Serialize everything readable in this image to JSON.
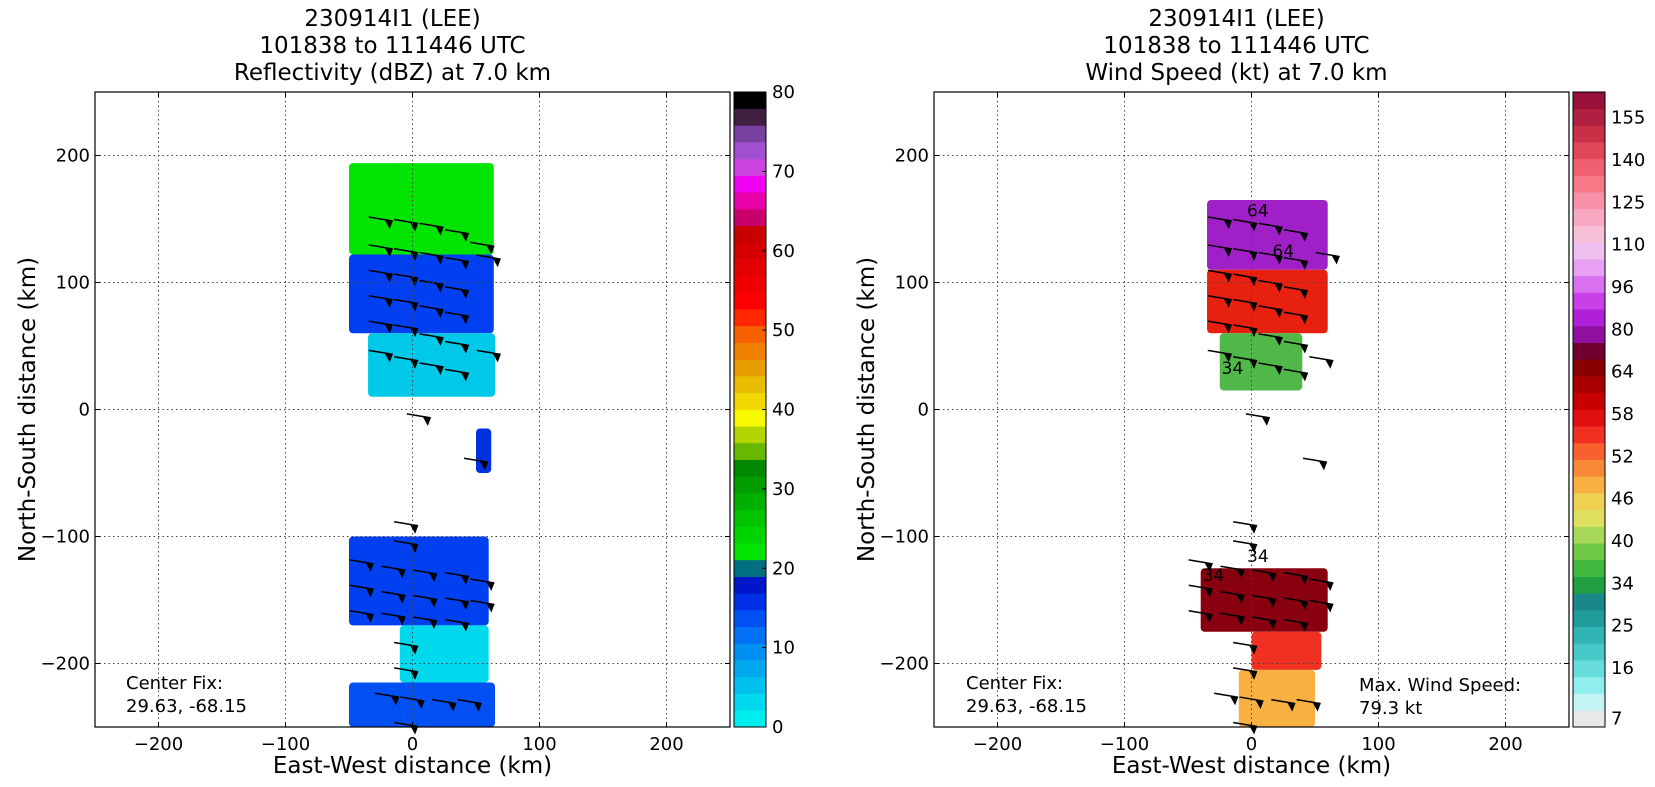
{
  "chart_data": [
    {
      "type": "heatmap",
      "title_lines": [
        "230914I1 (LEE)",
        "101838 to 111446 UTC",
        "Reflectivity (dBZ) at 7.0 km"
      ],
      "xlabel": "East-West distance (km)",
      "ylabel": "North-South distance (km)",
      "xlim": [
        -250,
        250
      ],
      "ylim": [
        -250,
        250
      ],
      "xticks": [
        -200,
        -100,
        0,
        100,
        200
      ],
      "yticks": [
        -200,
        -100,
        0,
        100,
        200
      ],
      "grid": true,
      "annotation": [
        "Center Fix:",
        "29.63, -68.15"
      ],
      "colorbar": {
        "label": "Reflectivity (dBZ)",
        "range": [
          0,
          80
        ],
        "ticks": [
          0,
          10,
          20,
          30,
          40,
          50,
          60,
          70,
          80
        ],
        "colors": [
          "#00eeee",
          "#00d8ee",
          "#00c0ee",
          "#00a8f0",
          "#0090f2",
          "#0070f4",
          "#0050f4",
          "#0030e6",
          "#0016c8",
          "#007080",
          "#00e400",
          "#00d400",
          "#00c400",
          "#00b000",
          "#009c00",
          "#008800",
          "#68b800",
          "#b4d400",
          "#f8f800",
          "#f0d800",
          "#e8bc00",
          "#e89c00",
          "#f08000",
          "#f86000",
          "#ff2800",
          "#ff0000",
          "#f00000",
          "#e20000",
          "#d40000",
          "#c80000",
          "#c8006c",
          "#e800a8",
          "#f000f0",
          "#cc44e0",
          "#a050d0",
          "#7840a0",
          "#402040",
          "#000000"
        ]
      },
      "echo_regions": [
        {
          "x": -50,
          "y": 122,
          "w": 114,
          "h": 72,
          "color": "#00e400"
        },
        {
          "x": -50,
          "y": 60,
          "w": 114,
          "h": 62,
          "color": "#0040f0"
        },
        {
          "x": -35,
          "y": 10,
          "w": 100,
          "h": 50,
          "color": "#00c8e8"
        },
        {
          "x": 50,
          "y": -50,
          "w": 12,
          "h": 35,
          "color": "#0030e0"
        },
        {
          "x": -50,
          "y": -170,
          "w": 110,
          "h": 70,
          "color": "#0040f0"
        },
        {
          "x": -10,
          "y": -215,
          "w": 70,
          "h": 45,
          "color": "#00d8ee"
        },
        {
          "x": -50,
          "y": -250,
          "w": 115,
          "h": 35,
          "color": "#0050f4"
        }
      ],
      "wind_barbs": [
        [
          -25,
          150
        ],
        [
          -5,
          148
        ],
        [
          15,
          145
        ],
        [
          35,
          140
        ],
        [
          55,
          130
        ],
        [
          -25,
          128
        ],
        [
          -5,
          125
        ],
        [
          15,
          122
        ],
        [
          35,
          118
        ],
        [
          60,
          120
        ],
        [
          -25,
          108
        ],
        [
          -5,
          105
        ],
        [
          15,
          100
        ],
        [
          35,
          95
        ],
        [
          -25,
          88
        ],
        [
          -5,
          85
        ],
        [
          15,
          80
        ],
        [
          35,
          75
        ],
        [
          -25,
          68
        ],
        [
          -5,
          65
        ],
        [
          15,
          58
        ],
        [
          35,
          52
        ],
        [
          60,
          45
        ],
        [
          -25,
          45
        ],
        [
          -5,
          40
        ],
        [
          15,
          35
        ],
        [
          35,
          30
        ],
        [
          5,
          -5
        ],
        [
          50,
          -40
        ],
        [
          -5,
          -90
        ],
        [
          -5,
          -105
        ],
        [
          -40,
          -120
        ],
        [
          -15,
          -125
        ],
        [
          10,
          -128
        ],
        [
          35,
          -130
        ],
        [
          55,
          -135
        ],
        [
          -40,
          -140
        ],
        [
          -15,
          -145
        ],
        [
          10,
          -148
        ],
        [
          35,
          -150
        ],
        [
          55,
          -152
        ],
        [
          -40,
          -160
        ],
        [
          -15,
          -162
        ],
        [
          10,
          -165
        ],
        [
          35,
          -167
        ],
        [
          -5,
          -185
        ],
        [
          -5,
          -205
        ],
        [
          -20,
          -225
        ],
        [
          0,
          -228
        ],
        [
          25,
          -230
        ],
        [
          45,
          -230
        ],
        [
          -5,
          -248
        ]
      ]
    },
    {
      "type": "heatmap",
      "title_lines": [
        "230914I1 (LEE)",
        "101838 to 111446 UTC",
        "Wind Speed (kt) at 7.0 km"
      ],
      "xlabel": "East-West distance (km)",
      "ylabel": "North-South distance (km)",
      "xlim": [
        -250,
        250
      ],
      "ylim": [
        -250,
        250
      ],
      "xticks": [
        -200,
        -100,
        0,
        100,
        200
      ],
      "yticks": [
        -200,
        -100,
        0,
        100,
        200
      ],
      "grid": true,
      "annotation": [
        "Center Fix:",
        "29.63, -68.15"
      ],
      "max_wind_label": [
        "Max. Wind Speed:",
        "79.3 kt"
      ],
      "max_wind_kt": 79.3,
      "contour_labels": [
        {
          "text": "64",
          "x": 5,
          "y": 152
        },
        {
          "text": "64",
          "x": 25,
          "y": 120
        },
        {
          "text": "34",
          "x": -15,
          "y": 28
        },
        {
          "text": "34",
          "x": 5,
          "y": -120
        },
        {
          "text": "34",
          "x": -30,
          "y": -135
        }
      ],
      "colorbar": {
        "label": "Wind Speed (kt)",
        "tick_labels": [
          "7",
          "16",
          "25",
          "34",
          "40",
          "46",
          "52",
          "58",
          "64",
          "80",
          "96",
          "110",
          "125",
          "140",
          "155"
        ],
        "colors": [
          "#e8e8e8",
          "#c4f4f4",
          "#90eeee",
          "#68dcdc",
          "#48c8c8",
          "#30b4b4",
          "#209c9c",
          "#188888",
          "#20a040",
          "#40b840",
          "#70c848",
          "#a8d858",
          "#e0e060",
          "#f0d050",
          "#f8b040",
          "#f88838",
          "#f86030",
          "#f03020",
          "#e01010",
          "#c80000",
          "#a80000",
          "#880000",
          "#700030",
          "#9010a0",
          "#b020d8",
          "#c840e8",
          "#d870f0",
          "#e8a0f4",
          "#f0c0f0",
          "#f8c0d8",
          "#f8a8c0",
          "#f890a8",
          "#f87888",
          "#f06070",
          "#e04858",
          "#c83048",
          "#b02040",
          "#981038"
        ]
      },
      "wind_regions": [
        {
          "x": -35,
          "y": 110,
          "w": 95,
          "h": 55,
          "color": "#a020c8"
        },
        {
          "x": -35,
          "y": 60,
          "w": 95,
          "h": 50,
          "color": "#e82010"
        },
        {
          "x": -25,
          "y": 15,
          "w": 65,
          "h": 45,
          "color": "#50b848"
        },
        {
          "x": -40,
          "y": -175,
          "w": 100,
          "h": 50,
          "color": "#880010"
        },
        {
          "x": 0,
          "y": -205,
          "w": 55,
          "h": 30,
          "color": "#f03020"
        },
        {
          "x": -10,
          "y": -250,
          "w": 60,
          "h": 45,
          "color": "#f8b040"
        }
      ],
      "wind_barbs": [
        [
          -25,
          150
        ],
        [
          -5,
          148
        ],
        [
          15,
          145
        ],
        [
          35,
          140
        ],
        [
          60,
          122
        ],
        [
          -25,
          128
        ],
        [
          -5,
          125
        ],
        [
          15,
          122
        ],
        [
          35,
          118
        ],
        [
          -25,
          108
        ],
        [
          -5,
          105
        ],
        [
          15,
          100
        ],
        [
          35,
          95
        ],
        [
          -25,
          88
        ],
        [
          -5,
          85
        ],
        [
          15,
          80
        ],
        [
          35,
          75
        ],
        [
          -25,
          68
        ],
        [
          -5,
          65
        ],
        [
          15,
          58
        ],
        [
          35,
          52
        ],
        [
          55,
          40
        ],
        [
          -25,
          45
        ],
        [
          -5,
          40
        ],
        [
          15,
          35
        ],
        [
          35,
          30
        ],
        [
          5,
          -5
        ],
        [
          50,
          -40
        ],
        [
          -5,
          -90
        ],
        [
          -5,
          -105
        ],
        [
          -40,
          -120
        ],
        [
          -15,
          -125
        ],
        [
          10,
          -128
        ],
        [
          35,
          -130
        ],
        [
          55,
          -135
        ],
        [
          -40,
          -140
        ],
        [
          -15,
          -145
        ],
        [
          10,
          -148
        ],
        [
          35,
          -150
        ],
        [
          55,
          -152
        ],
        [
          -40,
          -160
        ],
        [
          -15,
          -162
        ],
        [
          10,
          -165
        ],
        [
          35,
          -167
        ],
        [
          -5,
          -185
        ],
        [
          -5,
          -205
        ],
        [
          -20,
          -225
        ],
        [
          0,
          -228
        ],
        [
          25,
          -230
        ],
        [
          45,
          -230
        ],
        [
          -5,
          -248
        ]
      ]
    }
  ]
}
